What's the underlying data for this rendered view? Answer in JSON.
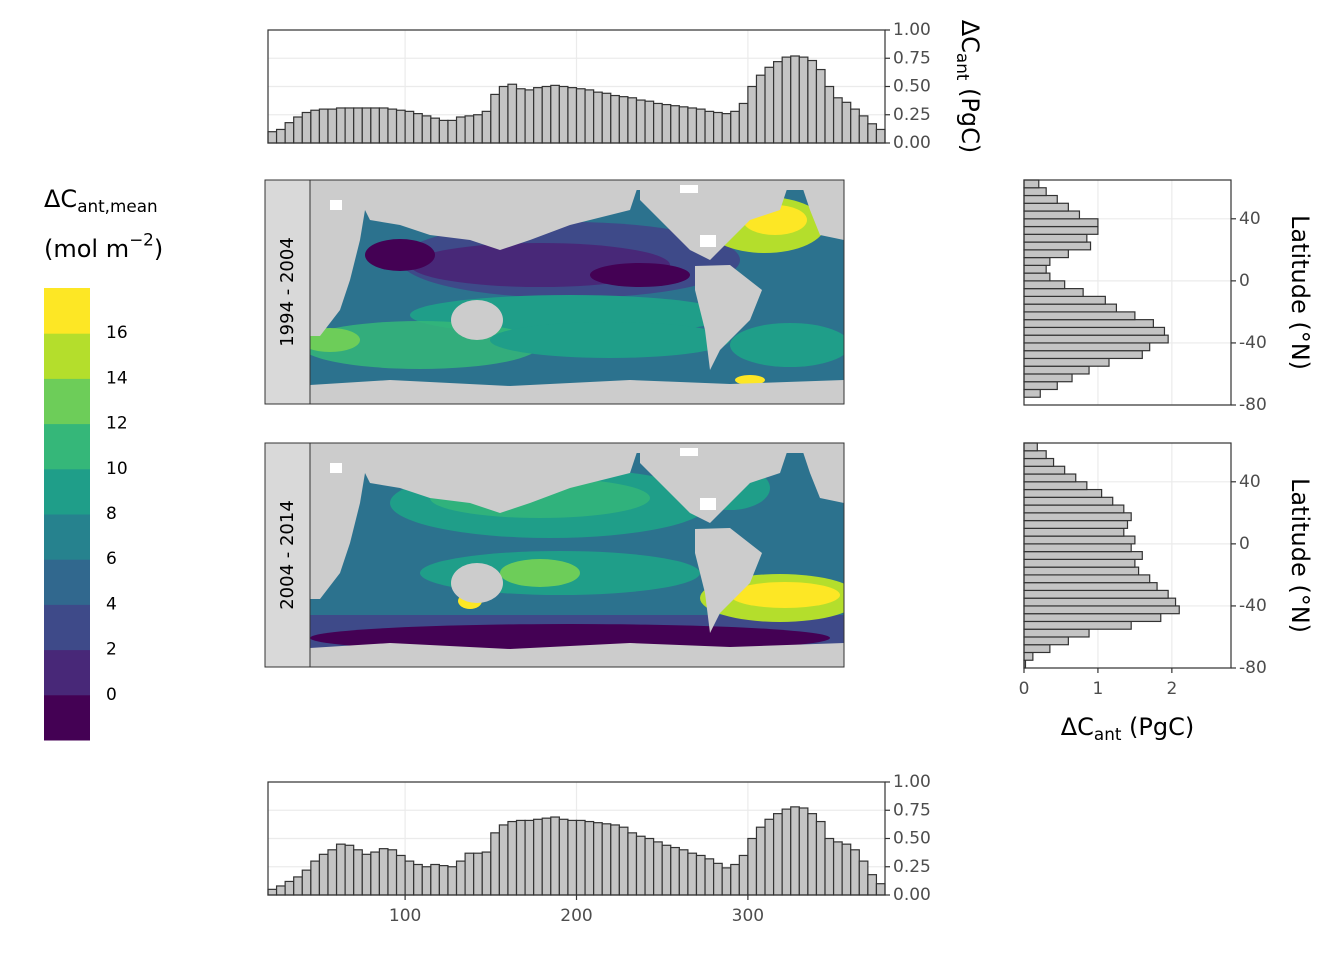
{
  "chart_data": [
    {
      "type": "histogram",
      "orientation": "vertical",
      "y_axis_position": "right",
      "x_tick_labels": false,
      "bins": [
        20,
        25,
        30,
        35,
        40,
        45,
        50,
        55,
        60,
        65,
        70,
        75,
        80,
        85,
        90,
        95,
        100,
        105,
        110,
        115,
        120,
        125,
        130,
        135,
        140,
        145,
        150,
        155,
        160,
        165,
        170,
        175,
        180,
        185,
        190,
        195,
        200,
        205,
        210,
        215,
        220,
        225,
        230,
        235,
        240,
        245,
        250,
        255,
        260,
        265,
        270,
        275,
        280,
        285,
        290,
        295,
        300,
        305,
        310,
        315,
        320,
        325,
        330,
        335,
        340,
        345,
        350,
        355,
        360,
        365,
        370,
        375,
        380
      ],
      "values": [
        0.1,
        0.12,
        0.18,
        0.23,
        0.27,
        0.29,
        0.3,
        0.3,
        0.31,
        0.31,
        0.31,
        0.31,
        0.31,
        0.31,
        0.3,
        0.29,
        0.28,
        0.26,
        0.24,
        0.22,
        0.2,
        0.2,
        0.23,
        0.24,
        0.25,
        0.28,
        0.43,
        0.5,
        0.52,
        0.48,
        0.47,
        0.49,
        0.5,
        0.51,
        0.5,
        0.49,
        0.48,
        0.47,
        0.45,
        0.44,
        0.42,
        0.41,
        0.4,
        0.38,
        0.37,
        0.35,
        0.34,
        0.33,
        0.32,
        0.31,
        0.3,
        0.28,
        0.27,
        0.26,
        0.28,
        0.35,
        0.5,
        0.6,
        0.67,
        0.72,
        0.76,
        0.77,
        0.76,
        0.73,
        0.65,
        0.5,
        0.4,
        0.36,
        0.3,
        0.24,
        0.17,
        0.12
      ],
      "color": "#c4c4c4",
      "grid": true,
      "xlim": [
        20,
        380
      ],
      "xticks": [
        100,
        200,
        300
      ],
      "ylim": [
        0,
        1
      ],
      "yticks": [
        {
          "value": 0,
          "label": "0.00"
        },
        {
          "value": 0.25,
          "label": "0.25"
        },
        {
          "value": 0.5,
          "label": "0.50"
        },
        {
          "value": 0.75,
          "label": "0.75"
        },
        {
          "value": 1,
          "label": "1.00"
        }
      ],
      "ylabel": {
        "text": "ΔC",
        "sub": "ant",
        "after": " (PgC)"
      }
    },
    {
      "type": "histogram",
      "orientation": "vertical",
      "y_axis_position": "right",
      "bins": [
        20,
        25,
        30,
        35,
        40,
        45,
        50,
        55,
        60,
        65,
        70,
        75,
        80,
        85,
        90,
        95,
        100,
        105,
        110,
        115,
        120,
        125,
        130,
        135,
        140,
        145,
        150,
        155,
        160,
        165,
        170,
        175,
        180,
        185,
        190,
        195,
        200,
        205,
        210,
        215,
        220,
        225,
        230,
        235,
        240,
        245,
        250,
        255,
        260,
        265,
        270,
        275,
        280,
        285,
        290,
        295,
        300,
        305,
        310,
        315,
        320,
        325,
        330,
        335,
        340,
        345,
        350,
        355,
        360,
        365,
        370,
        375,
        380
      ],
      "values": [
        0.05,
        0.08,
        0.12,
        0.16,
        0.22,
        0.3,
        0.36,
        0.4,
        0.45,
        0.44,
        0.4,
        0.36,
        0.38,
        0.41,
        0.4,
        0.35,
        0.3,
        0.27,
        0.25,
        0.27,
        0.26,
        0.25,
        0.3,
        0.37,
        0.37,
        0.38,
        0.55,
        0.62,
        0.65,
        0.66,
        0.66,
        0.67,
        0.68,
        0.69,
        0.67,
        0.66,
        0.66,
        0.65,
        0.64,
        0.63,
        0.62,
        0.6,
        0.55,
        0.52,
        0.5,
        0.47,
        0.44,
        0.42,
        0.4,
        0.37,
        0.35,
        0.32,
        0.28,
        0.24,
        0.27,
        0.35,
        0.5,
        0.6,
        0.67,
        0.72,
        0.76,
        0.78,
        0.77,
        0.72,
        0.65,
        0.5,
        0.47,
        0.45,
        0.4,
        0.3,
        0.18,
        0.1
      ],
      "color": "#c4c4c4",
      "grid": true,
      "xlim": [
        20,
        380
      ],
      "xticks": [
        100,
        200,
        300
      ],
      "ylim": [
        0,
        1
      ],
      "yticks": [
        {
          "value": 0,
          "label": "0.00"
        },
        {
          "value": 0.25,
          "label": "0.25"
        },
        {
          "value": 0.5,
          "label": "0.50"
        },
        {
          "value": 0.75,
          "label": "0.75"
        },
        {
          "value": 1,
          "label": "1.00"
        }
      ]
    },
    {
      "type": "histogram",
      "orientation": "horizontal",
      "y_axis_position": "right",
      "x_tick_labels": false,
      "bins": [
        -80,
        -75,
        -70,
        -65,
        -60,
        -55,
        -50,
        -45,
        -40,
        -35,
        -30,
        -25,
        -20,
        -15,
        -10,
        -5,
        0,
        5,
        10,
        15,
        20,
        25,
        30,
        35,
        40,
        45,
        50,
        55,
        60,
        65
      ],
      "values": [
        0,
        0.22,
        0.45,
        0.65,
        0.88,
        1.15,
        1.6,
        1.7,
        1.95,
        1.9,
        1.75,
        1.5,
        1.25,
        1.1,
        0.8,
        0.55,
        0.35,
        0.3,
        0.35,
        0.6,
        0.9,
        0.85,
        1.0,
        1.0,
        0.75,
        0.6,
        0.45,
        0.3,
        0.2
      ],
      "color": "#c4c4c4",
      "grid": true,
      "xlim": [
        0,
        2.8
      ],
      "xticks": [
        0,
        1,
        2
      ],
      "ylim": [
        -80,
        65
      ],
      "yticks": [
        -80,
        -40,
        0,
        40
      ],
      "ylabel": {
        "text": "Latitude (°N)"
      }
    },
    {
      "type": "histogram",
      "orientation": "horizontal",
      "y_axis_position": "right",
      "bins": [
        -80,
        -75,
        -70,
        -65,
        -60,
        -55,
        -50,
        -45,
        -40,
        -35,
        -30,
        -25,
        -20,
        -15,
        -10,
        -5,
        0,
        5,
        10,
        15,
        20,
        25,
        30,
        35,
        40,
        45,
        50,
        55,
        60,
        65
      ],
      "values": [
        0.02,
        0.12,
        0.35,
        0.6,
        0.88,
        1.45,
        1.85,
        2.1,
        2.05,
        1.95,
        1.8,
        1.7,
        1.55,
        1.5,
        1.6,
        1.45,
        1.5,
        1.35,
        1.4,
        1.45,
        1.35,
        1.2,
        1.05,
        0.85,
        0.7,
        0.55,
        0.4,
        0.3,
        0.18
      ],
      "color": "#c4c4c4",
      "grid": true,
      "xlim": [
        0,
        2.8
      ],
      "xticks": [
        0,
        1,
        2
      ],
      "ylim": [
        -80,
        65
      ],
      "yticks": [
        -80,
        -40,
        0,
        40
      ],
      "ylabel": {
        "text": "Latitude (°N)"
      },
      "xlabel": {
        "text": "ΔC",
        "sub": "ant",
        "after": " (PgC)"
      }
    },
    {
      "type": "colorbar",
      "title": [
        {
          "text": "ΔC",
          "sub": "ant,mean"
        },
        {
          "text": "(mol m",
          "sup": "−2",
          "after": ")"
        }
      ],
      "bins": [
        -2,
        0,
        2,
        4,
        6,
        8,
        10,
        12,
        14,
        16,
        18
      ],
      "colors": [
        "#440154",
        "#482878",
        "#3e4a89",
        "#31688e",
        "#26828e",
        "#1f9e89",
        "#35b779",
        "#6dcd59",
        "#b4de2c",
        "#fde725"
      ],
      "ticks": [
        0,
        2,
        4,
        6,
        8,
        10,
        12,
        14,
        16
      ]
    }
  ],
  "maps": [
    {
      "label": "1994 - 2004"
    },
    {
      "label": "2004 - 2014"
    }
  ]
}
